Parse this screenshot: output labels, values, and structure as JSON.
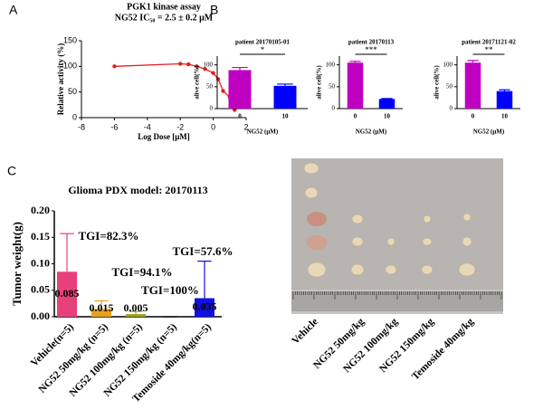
{
  "panels": [
    "A",
    "B",
    "C"
  ],
  "chart_data": [
    {
      "type": "scatter",
      "title": "PGK1 kinase assay",
      "subtitle": "NG52 IC₅₀ = 2.5 ±  0.2 μM",
      "x_label": "Log Dose [μM]",
      "y_label": "Relative activity (%)",
      "x": [
        -6,
        -2,
        -1.5,
        -1,
        -0.5,
        0,
        0.3,
        0.6,
        1,
        1.3
      ],
      "values": [
        100,
        105,
        104,
        100,
        95,
        87,
        75,
        52,
        40,
        15
      ],
      "color": "#e02020",
      "xlim": [
        -8,
        2
      ],
      "xticks": [
        -8,
        -6,
        -4,
        -2,
        0,
        2
      ],
      "ylim": [
        0,
        150
      ],
      "yticks": [
        0,
        50,
        100,
        150
      ]
    },
    {
      "type": "bar",
      "title": "patient 20170105-01",
      "x_label": "NG52 (μM)",
      "y_label": "alive cell(%)",
      "categories": [
        "0",
        "10"
      ],
      "values": [
        88,
        52
      ],
      "errors": [
        6,
        4
      ],
      "colors": [
        "#c000c0",
        "#0000ff"
      ],
      "annotation": "*",
      "ylim": [
        0,
        120
      ],
      "yticks": [
        0,
        50,
        100
      ]
    },
    {
      "type": "bar",
      "title": "patient 20170113",
      "x_label": "NG52 (μM)",
      "y_label": "alive cell(%)",
      "categories": [
        "0",
        "10"
      ],
      "values": [
        105,
        22
      ],
      "errors": [
        3,
        1
      ],
      "colors": [
        "#c000c0",
        "#0000ff"
      ],
      "annotation": "***",
      "ylim": [
        0,
        120
      ],
      "yticks": [
        0,
        50,
        100
      ]
    },
    {
      "type": "bar",
      "title": "patient 20171121-02",
      "x_label": "NG52 (μM)",
      "y_label": "alive cell(%)",
      "categories": [
        "0",
        "10"
      ],
      "values": [
        105,
        40
      ],
      "errors": [
        5,
        3
      ],
      "colors": [
        "#c000c0",
        "#0000ff"
      ],
      "annotation": "**",
      "ylim": [
        0,
        120
      ],
      "yticks": [
        0,
        50,
        100
      ]
    },
    {
      "type": "bar",
      "title": "Glioma PDX model: 20170113",
      "y_label": "Tumor weight(g)",
      "categories": [
        "Vehicle(n=5)",
        "NG52 50mg/kg (n=5)",
        "NG52 100mg/kg (n=5)",
        "NG52 150mg/kg (n=5)",
        "Temoside 40mg/kg(n=5)"
      ],
      "values": [
        0.085,
        0.015,
        0.005,
        0,
        0.035
      ],
      "errors": [
        0.072,
        0.015,
        0.005,
        0,
        0.07
      ],
      "colors": [
        "#e8407a",
        "#e8a020",
        "#a0a020",
        "#ffffff",
        "#1010e0"
      ],
      "annotations": [
        "TGI=82.3%",
        "TGI=94.1%",
        "TGI=100%",
        "TGI=57.6%"
      ],
      "ylim": [
        0,
        0.2
      ],
      "yticks": [
        {
          "value": 0,
          "label": "0.00"
        },
        {
          "value": 0.05,
          "label": "0.05"
        },
        {
          "value": 0.1,
          "label": "0.10"
        },
        {
          "value": 0.15,
          "label": "0.15"
        },
        {
          "value": 0.2,
          "label": "0.20"
        }
      ]
    }
  ],
  "photo": {
    "labels": [
      "Vehicle",
      "NG52 50mg/kg",
      "NG52 100mg/kg",
      "NG52 150mg/kg",
      "Temoside 40mg/kg"
    ]
  }
}
